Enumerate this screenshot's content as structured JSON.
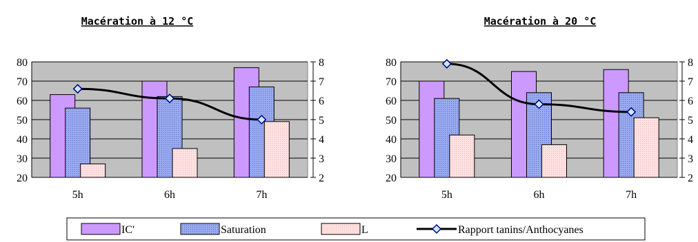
{
  "chart_data": [
    {
      "type": "bar",
      "title": "Macération à 12 °C",
      "categories": [
        "5h",
        "6h",
        "7h"
      ],
      "ylim": [
        20,
        80
      ],
      "yticks": [
        20,
        30,
        40,
        50,
        60,
        70,
        80
      ],
      "y2lim": [
        2,
        8
      ],
      "y2ticks": [
        2,
        3,
        4,
        5,
        6,
        7,
        8
      ],
      "series": [
        {
          "name": "IC'",
          "values": [
            63,
            70,
            77
          ],
          "axis": "left"
        },
        {
          "name": "Saturation",
          "values": [
            56,
            62,
            67
          ],
          "axis": "left"
        },
        {
          "name": "L",
          "values": [
            27,
            35,
            49
          ],
          "axis": "left"
        },
        {
          "name": "Rapport tanins/Anthocyanes",
          "values": [
            6.6,
            6.1,
            5.0
          ],
          "axis": "right",
          "type": "line"
        }
      ],
      "grid": true
    },
    {
      "type": "bar",
      "title": "Macération à 20 °C",
      "categories": [
        "5h",
        "6h",
        "7h"
      ],
      "ylim": [
        20,
        80
      ],
      "yticks": [
        20,
        30,
        40,
        50,
        60,
        70,
        80
      ],
      "y2lim": [
        2,
        8
      ],
      "y2ticks": [
        2,
        3,
        4,
        5,
        6,
        7,
        8
      ],
      "series": [
        {
          "name": "IC'",
          "values": [
            70,
            75,
            76
          ],
          "axis": "left"
        },
        {
          "name": "Saturation",
          "values": [
            61,
            64,
            64
          ],
          "axis": "left"
        },
        {
          "name": "L",
          "values": [
            42,
            37,
            51
          ],
          "axis": "left"
        },
        {
          "name": "Rapport tanins/Anthocyanes",
          "values": [
            7.9,
            5.8,
            5.4
          ],
          "axis": "right",
          "type": "line"
        }
      ],
      "grid": true
    }
  ],
  "legend": {
    "items": [
      "IC'",
      "Saturation",
      "L",
      "Rapport tanins/Anthocyanes"
    ]
  },
  "colors": {
    "ic": "#cc99ff",
    "saturation": "#99aaee",
    "l": "#ffe0e0",
    "line": "#000000",
    "marker": "#cce8ff",
    "marker_border": "#000080",
    "plot_bg": "#c0c0c0"
  }
}
